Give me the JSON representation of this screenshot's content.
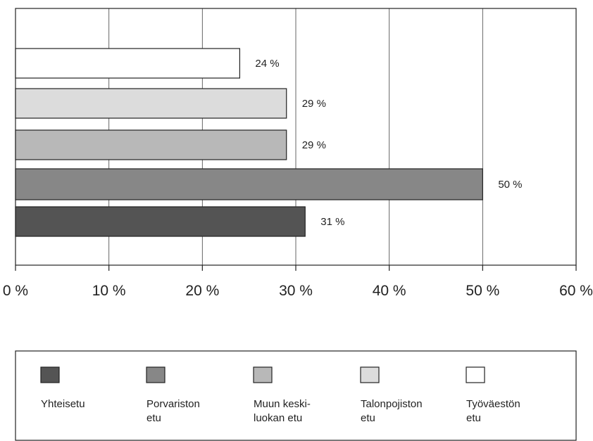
{
  "chart_data": {
    "type": "bar",
    "orientation": "horizontal",
    "title": "",
    "xlabel": "",
    "ylabel": "",
    "xlim": [
      0,
      60
    ],
    "x_ticks": [
      0,
      10,
      20,
      30,
      40,
      50,
      60
    ],
    "x_tick_labels": [
      "0 %",
      "10 %",
      "20 %",
      "30 %",
      "40 %",
      "50 %",
      "60 %"
    ],
    "grid": "vertical",
    "legend_position": "bottom",
    "categories": [
      "Työväestön etu",
      "Talonpojiston etu",
      "Muun keskiluokan etu",
      "Porvariston etu",
      "Yhteisetu"
    ],
    "values": [
      24,
      29,
      29,
      50,
      31
    ],
    "data_labels": [
      "24 %",
      "29 %",
      "29 %",
      "50 %",
      "31 %"
    ],
    "colors": [
      "#ffffff",
      "#dcdcdc",
      "#b8b8b8",
      "#878787",
      "#545454"
    ],
    "legend": [
      {
        "lines": [
          "Yhteisetu"
        ],
        "color": "#545454"
      },
      {
        "lines": [
          "Porvariston",
          "etu"
        ],
        "color": "#878787"
      },
      {
        "lines": [
          "Muun keski-",
          "luokan etu"
        ],
        "color": "#b8b8b8"
      },
      {
        "lines": [
          "Talonpojiston",
          "etu"
        ],
        "color": "#dcdcdc"
      },
      {
        "lines": [
          "Työväestön",
          "etu"
        ],
        "color": "#ffffff"
      }
    ]
  }
}
